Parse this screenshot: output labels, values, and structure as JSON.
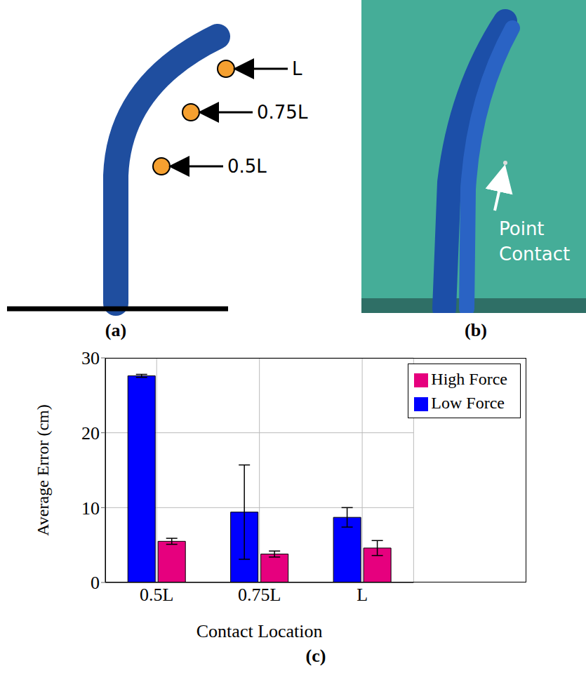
{
  "diagram": {
    "label": "(a)",
    "markers": [
      "L",
      "0.75L",
      "0.5L"
    ]
  },
  "photo": {
    "label": "(b)",
    "annotation": "Point Contact"
  },
  "chart_data": {
    "type": "bar",
    "label": "(c)",
    "x_label": "Contact Location",
    "y_label": "Average Error (cm)",
    "categories": [
      "0.5L",
      "0.75L",
      "L"
    ],
    "series": [
      {
        "name": "Low Force",
        "color": "#0000ff",
        "values": [
          27.6,
          9.4,
          8.7
        ],
        "errors": [
          0.2,
          6.3,
          1.3
        ]
      },
      {
        "name": "High Force",
        "color": "#e6007e",
        "values": [
          5.5,
          3.8,
          4.6
        ],
        "errors": [
          0.4,
          0.4,
          1.0
        ]
      }
    ],
    "ylim": [
      0,
      30
    ],
    "yticks": [
      0,
      10,
      20,
      30
    ],
    "grid": true,
    "legend": "top-right"
  }
}
